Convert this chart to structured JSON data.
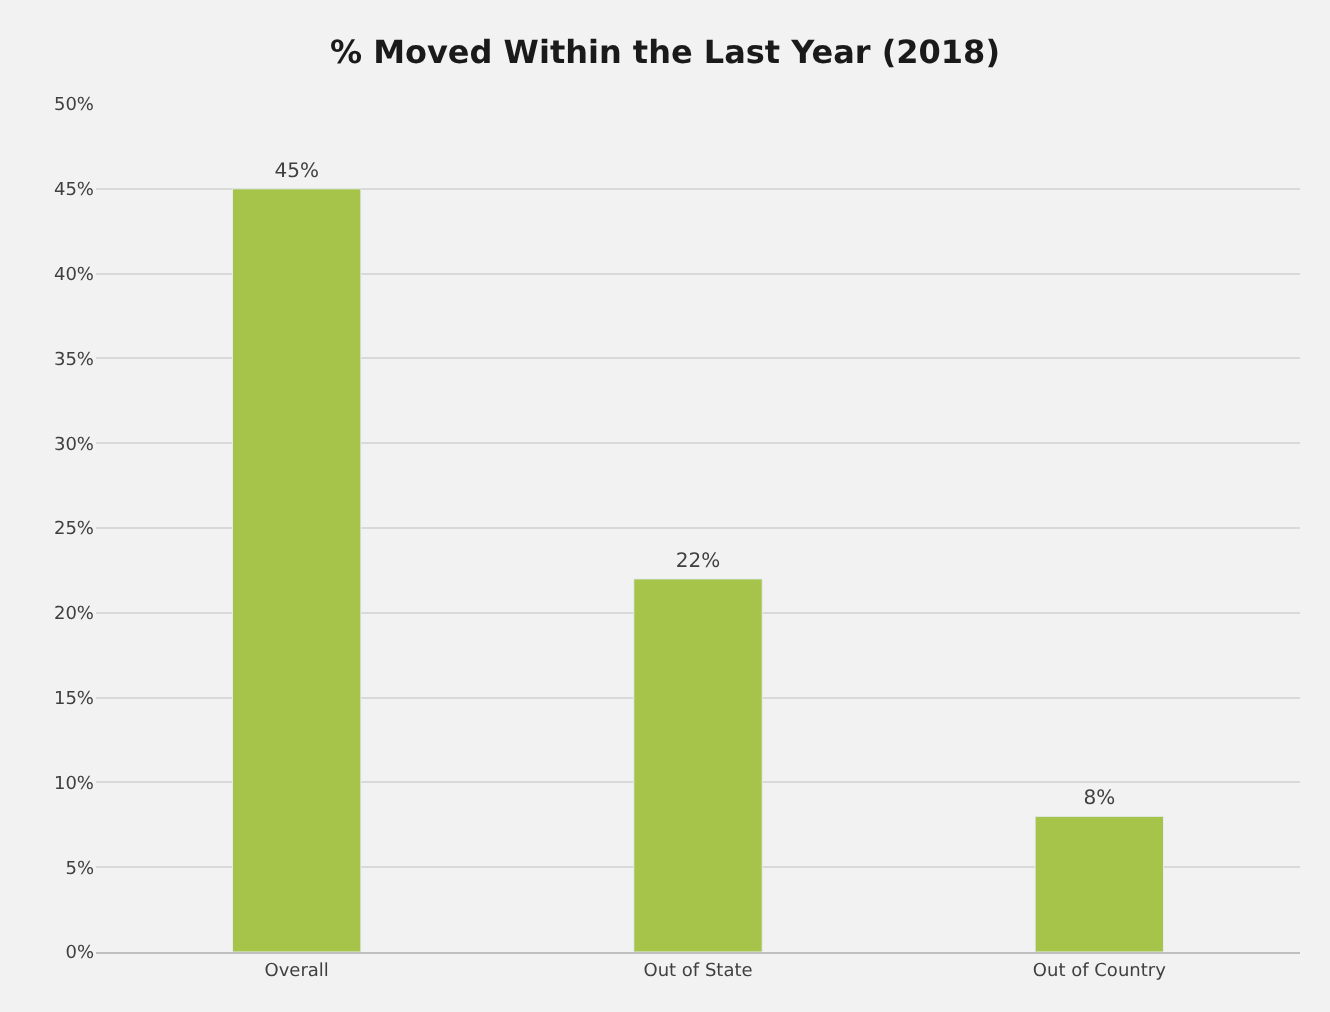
{
  "chart_data": {
    "type": "bar",
    "title": "% Moved Within the Last Year (2018)",
    "categories": [
      "Overall",
      "Out of State",
      "Out of Country"
    ],
    "values": [
      45,
      22,
      8
    ],
    "value_labels": [
      "45%",
      "22%",
      "8%"
    ],
    "color": "#a6c34a",
    "ylim": [
      0,
      50
    ],
    "yticks": [
      {
        "value": 0,
        "label": "0%"
      },
      {
        "value": 5,
        "label": "5%"
      },
      {
        "value": 10,
        "label": "10%"
      },
      {
        "value": 15,
        "label": "15%"
      },
      {
        "value": 20,
        "label": "20%"
      },
      {
        "value": 25,
        "label": "25%"
      },
      {
        "value": 30,
        "label": "30%"
      },
      {
        "value": 35,
        "label": "35%"
      },
      {
        "value": 40,
        "label": "40%"
      },
      {
        "value": 45,
        "label": "45%"
      },
      {
        "value": 50,
        "label": "50%"
      }
    ],
    "grid": "y"
  }
}
